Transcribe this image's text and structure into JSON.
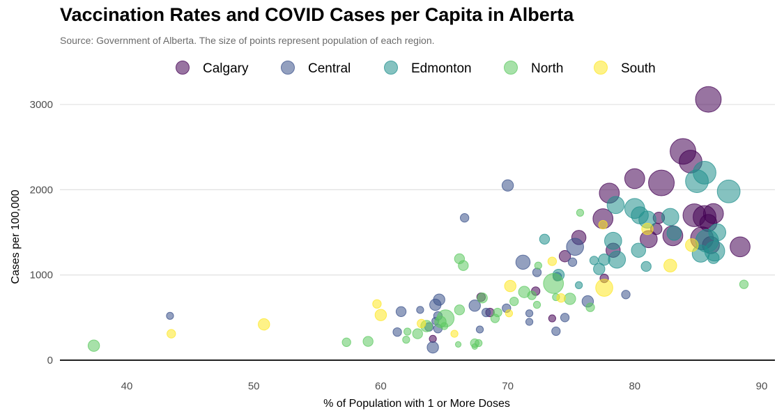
{
  "chart_data": {
    "type": "scatter",
    "title": "Vaccination Rates and COVID Cases per Capita in Alberta",
    "subtitle": "Source: Government of Alberta. The size of points represent population of each region.",
    "xlabel": "% of Population with 1 or More Doses",
    "ylabel": "Cases per 100,000",
    "xlim": [
      35,
      91
    ],
    "ylim": [
      -50,
      3180
    ],
    "x_ticks": [
      40,
      50,
      60,
      70,
      80,
      90
    ],
    "y_ticks": [
      0,
      1000,
      2000,
      3000
    ],
    "grid": "horizontal major only",
    "legend_position": "top",
    "series": [
      {
        "name": "Calgary",
        "color": "#440154",
        "points": [
          {
            "x": 85.8,
            "y": 3060,
            "s": 9
          },
          {
            "x": 83.8,
            "y": 2450,
            "s": 9
          },
          {
            "x": 84.4,
            "y": 2330,
            "s": 8
          },
          {
            "x": 80.0,
            "y": 2130,
            "s": 7
          },
          {
            "x": 82.1,
            "y": 2080,
            "s": 9
          },
          {
            "x": 78.0,
            "y": 1960,
            "s": 7
          },
          {
            "x": 84.7,
            "y": 1700,
            "s": 8
          },
          {
            "x": 85.5,
            "y": 1680,
            "s": 8
          },
          {
            "x": 86.2,
            "y": 1720,
            "s": 7
          },
          {
            "x": 77.5,
            "y": 1660,
            "s": 7
          },
          {
            "x": 81.9,
            "y": 1670,
            "s": 4
          },
          {
            "x": 85.8,
            "y": 1610,
            "s": 6
          },
          {
            "x": 81.7,
            "y": 1540,
            "s": 4
          },
          {
            "x": 83.0,
            "y": 1460,
            "s": 7
          },
          {
            "x": 85.3,
            "y": 1430,
            "s": 8
          },
          {
            "x": 86.0,
            "y": 1350,
            "s": 6
          },
          {
            "x": 81.1,
            "y": 1420,
            "s": 6
          },
          {
            "x": 75.6,
            "y": 1440,
            "s": 5
          },
          {
            "x": 88.3,
            "y": 1330,
            "s": 7
          },
          {
            "x": 78.3,
            "y": 1290,
            "s": 5
          },
          {
            "x": 74.5,
            "y": 1220,
            "s": 4
          },
          {
            "x": 77.6,
            "y": 960,
            "s": 3
          },
          {
            "x": 72.2,
            "y": 810,
            "s": 3
          },
          {
            "x": 67.9,
            "y": 740,
            "s": 3
          },
          {
            "x": 68.6,
            "y": 560,
            "s": 3
          },
          {
            "x": 73.5,
            "y": 490,
            "s": 2.5
          },
          {
            "x": 64.1,
            "y": 250,
            "s": 2.5
          }
        ]
      },
      {
        "name": "Central",
        "color": "#3b528b",
        "points": [
          {
            "x": 70.0,
            "y": 2050,
            "s": 4
          },
          {
            "x": 66.6,
            "y": 1670,
            "s": 3
          },
          {
            "x": 75.3,
            "y": 1330,
            "s": 6
          },
          {
            "x": 71.2,
            "y": 1150,
            "s": 5
          },
          {
            "x": 72.3,
            "y": 1030,
            "s": 3
          },
          {
            "x": 75.1,
            "y": 1150,
            "s": 3
          },
          {
            "x": 73.9,
            "y": 980,
            "s": 3
          },
          {
            "x": 79.3,
            "y": 770,
            "s": 3
          },
          {
            "x": 76.3,
            "y": 690,
            "s": 4
          },
          {
            "x": 64.6,
            "y": 710,
            "s": 4
          },
          {
            "x": 64.3,
            "y": 650,
            "s": 4
          },
          {
            "x": 67.4,
            "y": 640,
            "s": 4
          },
          {
            "x": 69.9,
            "y": 610,
            "s": 3
          },
          {
            "x": 68.3,
            "y": 560,
            "s": 3
          },
          {
            "x": 61.6,
            "y": 570,
            "s": 3.5
          },
          {
            "x": 63.1,
            "y": 590,
            "s": 2.5
          },
          {
            "x": 64.5,
            "y": 520,
            "s": 3
          },
          {
            "x": 71.7,
            "y": 550,
            "s": 2.5
          },
          {
            "x": 74.5,
            "y": 500,
            "s": 3
          },
          {
            "x": 71.7,
            "y": 450,
            "s": 2.5
          },
          {
            "x": 64.3,
            "y": 460,
            "s": 2.5
          },
          {
            "x": 63.8,
            "y": 390,
            "s": 3
          },
          {
            "x": 64.5,
            "y": 370,
            "s": 3
          },
          {
            "x": 61.3,
            "y": 330,
            "s": 3
          },
          {
            "x": 67.8,
            "y": 360,
            "s": 2.5
          },
          {
            "x": 73.8,
            "y": 340,
            "s": 3
          },
          {
            "x": 64.1,
            "y": 150,
            "s": 4
          },
          {
            "x": 43.4,
            "y": 520,
            "s": 2.5
          }
        ]
      },
      {
        "name": "Edmonton",
        "color": "#21908d",
        "points": [
          {
            "x": 87.4,
            "y": 1980,
            "s": 8
          },
          {
            "x": 85.5,
            "y": 2200,
            "s": 8
          },
          {
            "x": 84.9,
            "y": 2100,
            "s": 8
          },
          {
            "x": 80.0,
            "y": 1780,
            "s": 7
          },
          {
            "x": 78.5,
            "y": 1820,
            "s": 6
          },
          {
            "x": 81.0,
            "y": 1650,
            "s": 6
          },
          {
            "x": 80.4,
            "y": 1700,
            "s": 6
          },
          {
            "x": 82.8,
            "y": 1680,
            "s": 6
          },
          {
            "x": 85.7,
            "y": 1400,
            "s": 8
          },
          {
            "x": 86.5,
            "y": 1500,
            "s": 6
          },
          {
            "x": 86.3,
            "y": 1280,
            "s": 7
          },
          {
            "x": 85.2,
            "y": 1250,
            "s": 6
          },
          {
            "x": 83.1,
            "y": 1490,
            "s": 5
          },
          {
            "x": 78.3,
            "y": 1400,
            "s": 6
          },
          {
            "x": 78.6,
            "y": 1180,
            "s": 6
          },
          {
            "x": 80.3,
            "y": 1290,
            "s": 5
          },
          {
            "x": 77.6,
            "y": 1180,
            "s": 4
          },
          {
            "x": 77.2,
            "y": 1070,
            "s": 4
          },
          {
            "x": 76.8,
            "y": 1170,
            "s": 3
          },
          {
            "x": 80.9,
            "y": 1100,
            "s": 3.5
          },
          {
            "x": 72.9,
            "y": 1420,
            "s": 3.5
          },
          {
            "x": 74.0,
            "y": 1000,
            "s": 4
          },
          {
            "x": 86.2,
            "y": 1200,
            "s": 4
          },
          {
            "x": 75.6,
            "y": 880,
            "s": 2.5
          }
        ]
      },
      {
        "name": "North",
        "color": "#5ec962",
        "points": [
          {
            "x": 37.4,
            "y": 170,
            "s": 4
          },
          {
            "x": 57.3,
            "y": 210,
            "s": 3
          },
          {
            "x": 59.0,
            "y": 220,
            "s": 3.5
          },
          {
            "x": 62.0,
            "y": 240,
            "s": 2.5
          },
          {
            "x": 62.1,
            "y": 335,
            "s": 2.5
          },
          {
            "x": 62.9,
            "y": 310,
            "s": 3.5
          },
          {
            "x": 63.6,
            "y": 400,
            "s": 4
          },
          {
            "x": 64.7,
            "y": 450,
            "s": 4
          },
          {
            "x": 65.1,
            "y": 490,
            "s": 6
          },
          {
            "x": 65.0,
            "y": 400,
            "s": 2.5
          },
          {
            "x": 66.2,
            "y": 590,
            "s": 3.5
          },
          {
            "x": 66.2,
            "y": 1190,
            "s": 3.5
          },
          {
            "x": 66.5,
            "y": 1110,
            "s": 3.5
          },
          {
            "x": 67.4,
            "y": 200,
            "s": 3
          },
          {
            "x": 67.7,
            "y": 200,
            "s": 2.5
          },
          {
            "x": 66.1,
            "y": 185,
            "s": 2
          },
          {
            "x": 67.4,
            "y": 160,
            "s": 2
          },
          {
            "x": 68.0,
            "y": 730,
            "s": 3.5
          },
          {
            "x": 69.0,
            "y": 490,
            "s": 3
          },
          {
            "x": 69.2,
            "y": 560,
            "s": 3
          },
          {
            "x": 70.5,
            "y": 690,
            "s": 3
          },
          {
            "x": 71.3,
            "y": 800,
            "s": 4
          },
          {
            "x": 71.9,
            "y": 760,
            "s": 3
          },
          {
            "x": 72.3,
            "y": 650,
            "s": 2.5
          },
          {
            "x": 72.4,
            "y": 1110,
            "s": 2.5
          },
          {
            "x": 73.6,
            "y": 900,
            "s": 7
          },
          {
            "x": 73.8,
            "y": 740,
            "s": 2.5
          },
          {
            "x": 74.9,
            "y": 720,
            "s": 4
          },
          {
            "x": 75.7,
            "y": 1730,
            "s": 2.5
          },
          {
            "x": 76.5,
            "y": 620,
            "s": 3
          },
          {
            "x": 88.6,
            "y": 890,
            "s": 3
          }
        ]
      },
      {
        "name": "South",
        "color": "#fde725",
        "points": [
          {
            "x": 43.5,
            "y": 310,
            "s": 3
          },
          {
            "x": 50.8,
            "y": 420,
            "s": 4
          },
          {
            "x": 59.7,
            "y": 660,
            "s": 3
          },
          {
            "x": 60.0,
            "y": 530,
            "s": 4
          },
          {
            "x": 63.2,
            "y": 430,
            "s": 3
          },
          {
            "x": 65.8,
            "y": 310,
            "s": 2.5
          },
          {
            "x": 70.2,
            "y": 870,
            "s": 4
          },
          {
            "x": 70.1,
            "y": 550,
            "s": 2.5
          },
          {
            "x": 73.5,
            "y": 1160,
            "s": 3
          },
          {
            "x": 74.2,
            "y": 730,
            "s": 3
          },
          {
            "x": 77.6,
            "y": 850,
            "s": 6
          },
          {
            "x": 77.5,
            "y": 1590,
            "s": 3
          },
          {
            "x": 81.0,
            "y": 1540,
            "s": 4
          },
          {
            "x": 82.8,
            "y": 1110,
            "s": 4.5
          },
          {
            "x": 84.5,
            "y": 1350,
            "s": 4.5
          }
        ]
      }
    ]
  }
}
